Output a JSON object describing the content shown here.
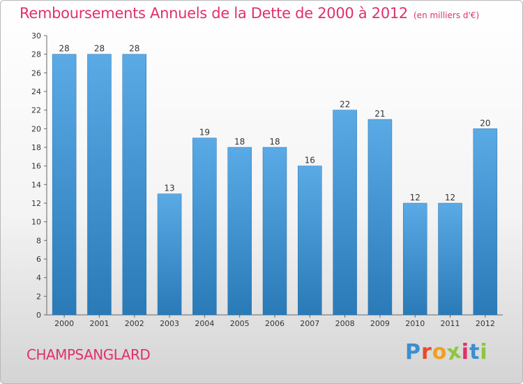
{
  "chart_data": {
    "type": "bar",
    "title": "Remboursements Annuels de la Dette de 2000 à 2012",
    "subtitle": "(en milliers d'€)",
    "categories": [
      "2000",
      "2001",
      "2002",
      "2003",
      "2004",
      "2005",
      "2006",
      "2007",
      "2008",
      "2009",
      "2010",
      "2011",
      "2012"
    ],
    "values": [
      28,
      28,
      28,
      13,
      19,
      18,
      18,
      16,
      22,
      21,
      12,
      12,
      20
    ],
    "ylim": [
      0,
      30
    ],
    "yticks": [
      0,
      2,
      4,
      6,
      8,
      10,
      12,
      14,
      16,
      18,
      20,
      22,
      24,
      26,
      28,
      30
    ],
    "grid": false,
    "bar_color_top": "#5aaae6",
    "bar_color_bottom": "#2a7ab8"
  },
  "footer": {
    "city": "CHAMPSANGLARD",
    "logo_letters": [
      "P",
      "r",
      "o",
      "x",
      "i",
      "t",
      "i"
    ],
    "logo_colors": [
      "#3a8fd0",
      "#e84a2a",
      "#f0a020",
      "#8cc63f",
      "#e0306a",
      "#3a8fd0",
      "#8cc63f"
    ]
  }
}
